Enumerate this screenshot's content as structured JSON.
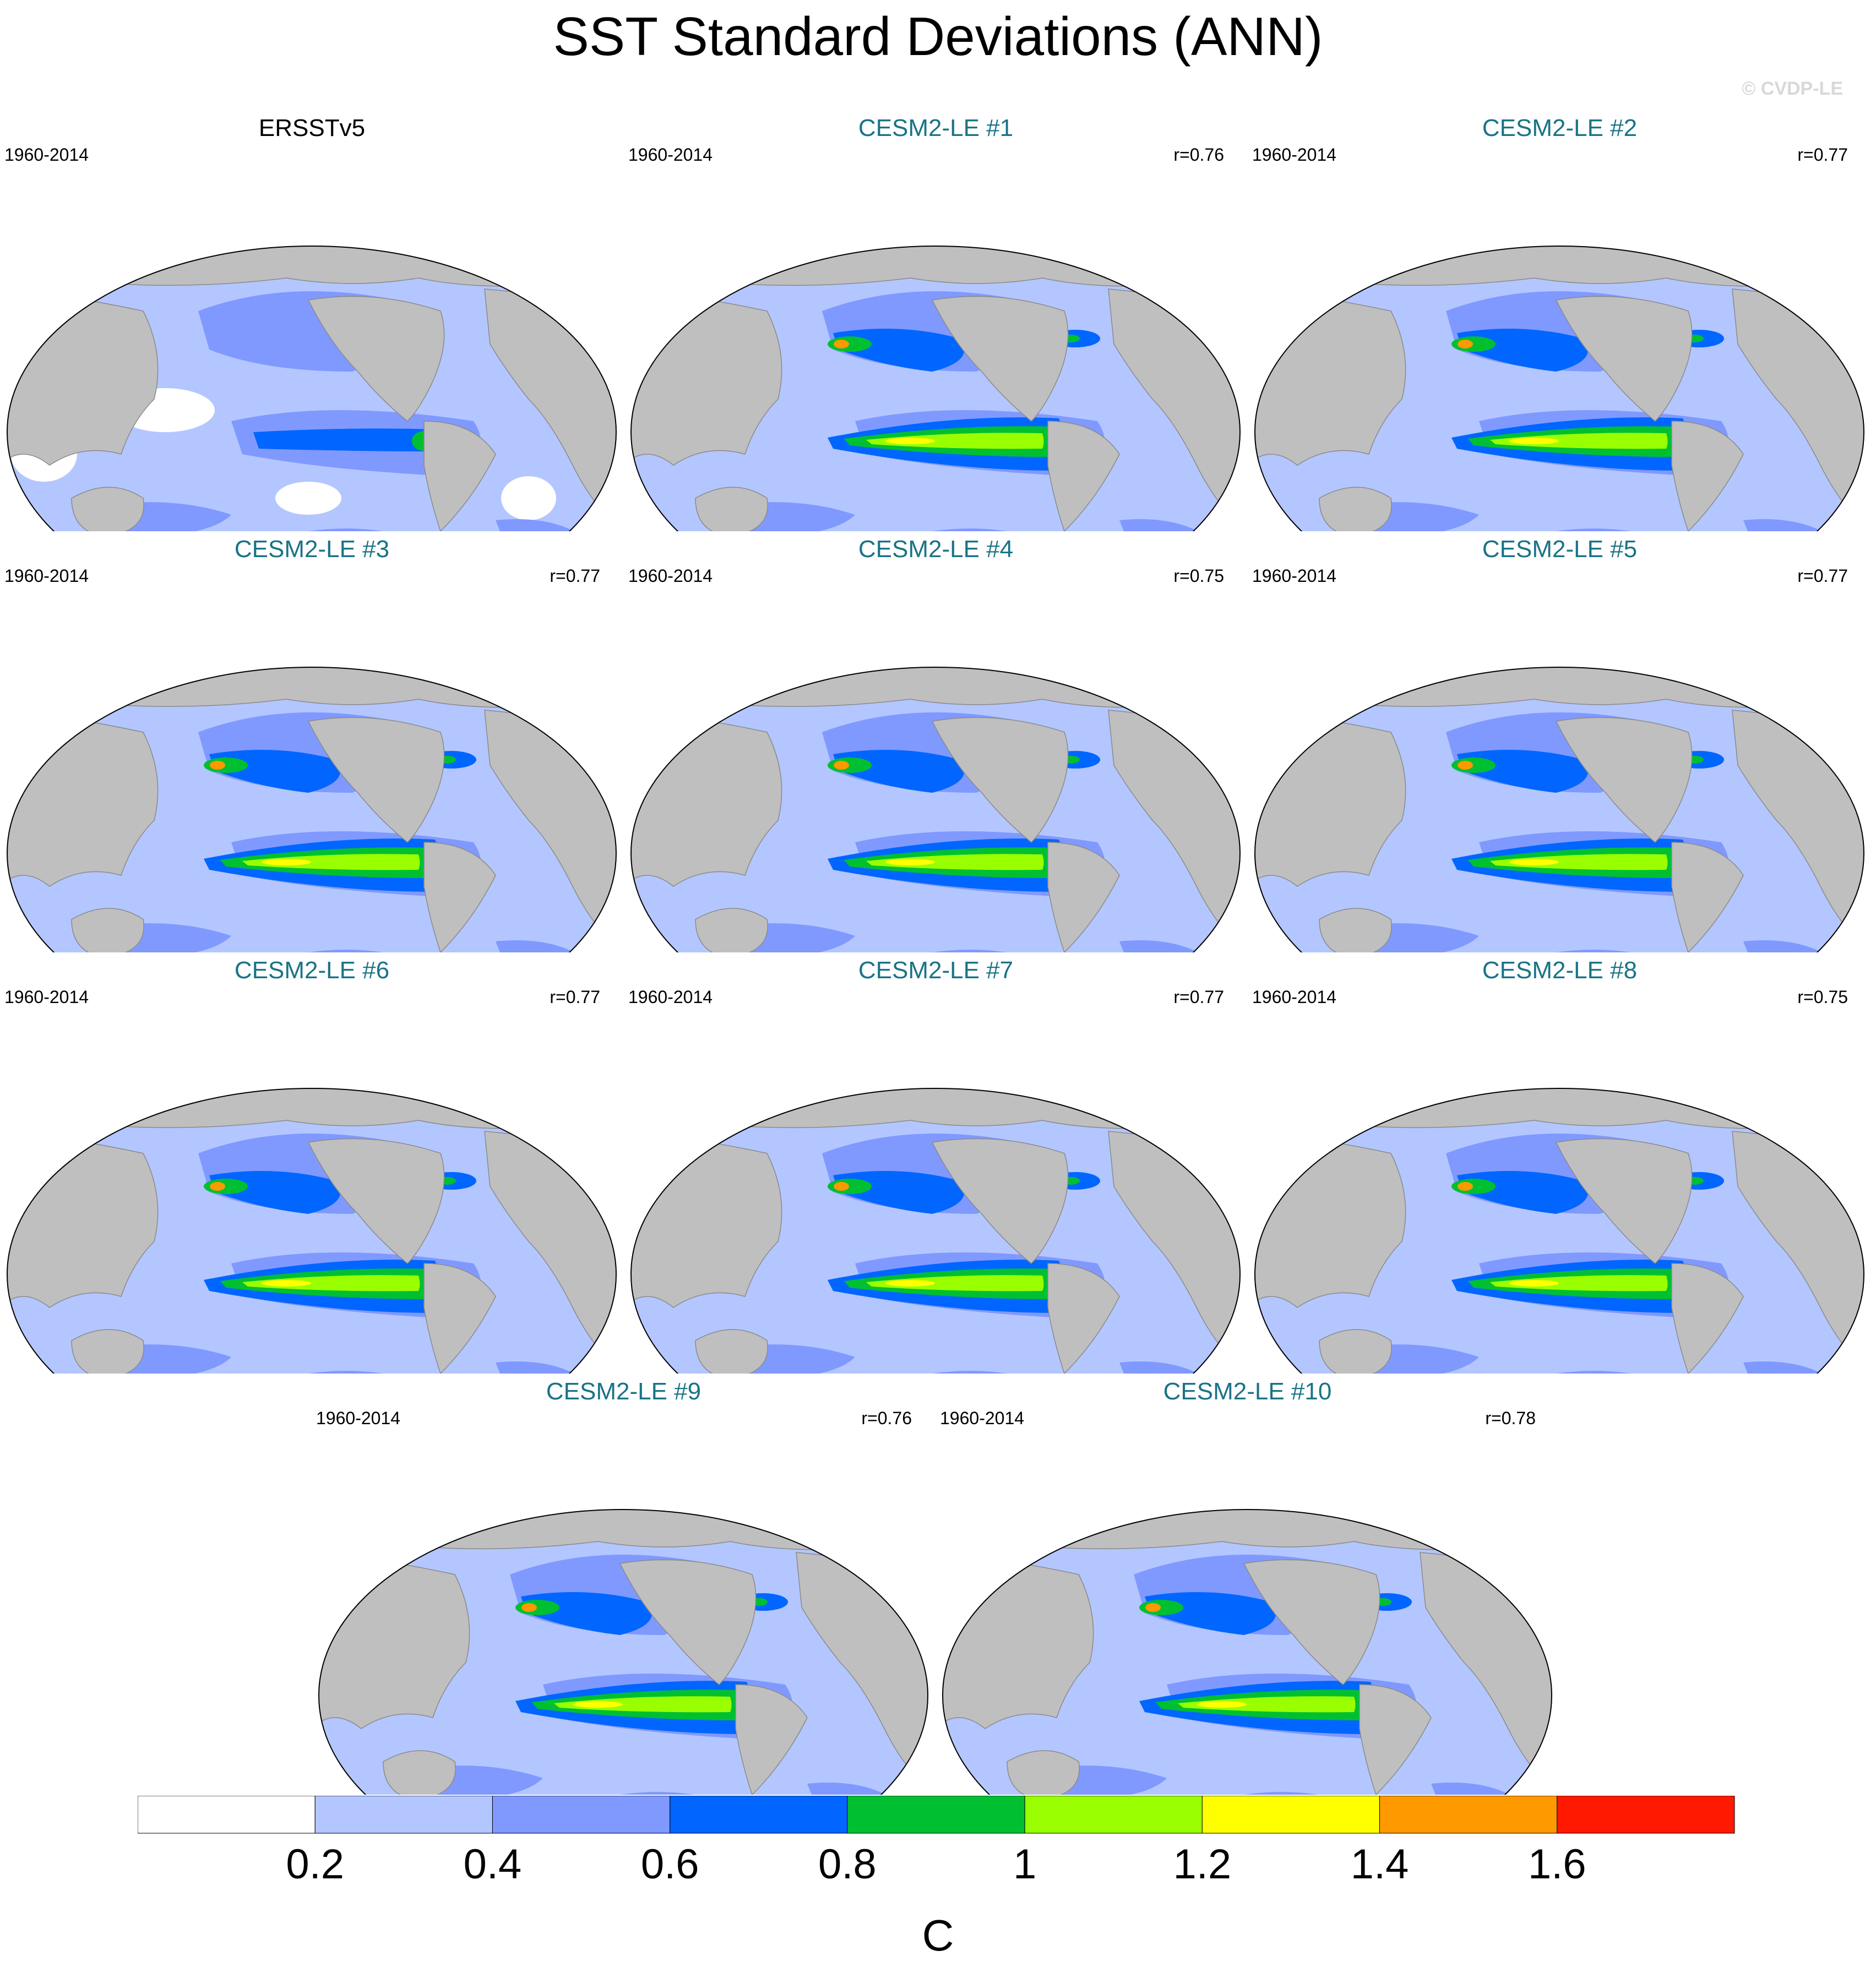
{
  "title": "SST Standard Deviations (ANN)",
  "watermark": "© CVDP-LE",
  "panels": [
    {
      "title": "ERSSTv5",
      "period": "1960-2014",
      "corr": "",
      "observed": true
    },
    {
      "title": "CESM2-LE #1",
      "period": "1960-2014",
      "corr": "r=0.76",
      "observed": false
    },
    {
      "title": "CESM2-LE #2",
      "period": "1960-2014",
      "corr": "r=0.77",
      "observed": false
    },
    {
      "title": "CESM2-LE #3",
      "period": "1960-2014",
      "corr": "r=0.77",
      "observed": false
    },
    {
      "title": "CESM2-LE #4",
      "period": "1960-2014",
      "corr": "r=0.75",
      "observed": false
    },
    {
      "title": "CESM2-LE #5",
      "period": "1960-2014",
      "corr": "r=0.77",
      "observed": false
    },
    {
      "title": "CESM2-LE #6",
      "period": "1960-2014",
      "corr": "r=0.77",
      "observed": false
    },
    {
      "title": "CESM2-LE #7",
      "period": "1960-2014",
      "corr": "r=0.77",
      "observed": false
    },
    {
      "title": "CESM2-LE #8",
      "period": "1960-2014",
      "corr": "r=0.75",
      "observed": false
    },
    {
      "title": "CESM2-LE #9",
      "period": "1960-2014",
      "corr": "r=0.76",
      "observed": false
    },
    {
      "title": "CESM2-LE #10",
      "period": "1960-2014",
      "corr": "r=0.78",
      "observed": false
    }
  ],
  "colorbar": {
    "colors": [
      "#ffffff",
      "#b3c6ff",
      "#8099ff",
      "#0066ff",
      "#00c032",
      "#99ff00",
      "#ffff00",
      "#ff9900",
      "#ff1900"
    ],
    "tick_labels": [
      "0.2",
      "0.4",
      "0.6",
      "0.8",
      "1",
      "1.2",
      "1.4",
      "1.6"
    ],
    "units": "C"
  },
  "land_color": "#bfbfbf"
}
